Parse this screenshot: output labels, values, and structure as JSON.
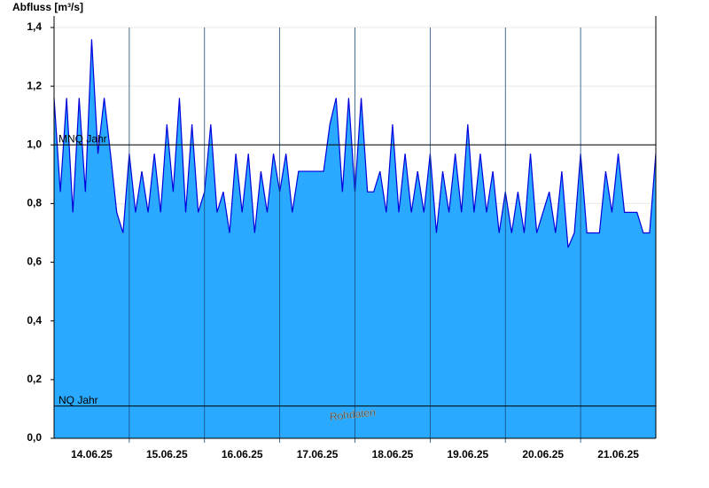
{
  "chart_data": {
    "type": "area",
    "y_label": "Abfluss [m³/s]",
    "x": [
      0,
      2,
      4,
      6,
      8,
      10,
      12,
      14,
      16,
      18,
      20,
      22,
      24,
      26,
      28,
      30,
      32,
      34,
      36,
      38,
      40,
      42,
      44,
      46,
      48,
      50,
      52,
      54,
      56,
      58,
      60,
      62,
      64,
      66,
      68,
      70,
      72,
      74,
      76,
      78,
      80,
      82,
      84,
      86,
      88,
      90,
      92,
      94,
      96,
      98,
      100,
      102,
      104,
      106,
      108,
      110,
      112,
      114,
      116,
      118,
      120,
      122,
      124,
      126,
      128,
      130,
      132,
      134,
      136,
      138,
      140,
      142,
      144,
      146,
      148,
      150,
      152,
      154,
      156,
      158,
      160,
      162,
      164,
      166,
      168,
      170,
      172,
      174,
      176,
      178,
      180,
      182,
      184,
      186,
      188,
      190,
      192
    ],
    "series": [
      {
        "name": "Rohdaten",
        "color": "#29a9ff",
        "line_color": "#0000dd",
        "values": [
          1.16,
          0.84,
          1.16,
          0.77,
          1.16,
          0.84,
          1.36,
          0.97,
          1.16,
          0.97,
          0.77,
          0.7,
          0.97,
          0.77,
          0.91,
          0.77,
          0.97,
          0.77,
          1.07,
          0.84,
          1.16,
          0.77,
          1.07,
          0.77,
          0.84,
          1.07,
          0.77,
          0.84,
          0.7,
          0.97,
          0.77,
          0.97,
          0.7,
          0.91,
          0.77,
          0.97,
          0.84,
          0.97,
          0.77,
          0.91,
          0.91,
          0.91,
          0.91,
          0.91,
          1.07,
          1.16,
          0.84,
          1.16,
          0.84,
          1.16,
          0.84,
          0.84,
          0.91,
          0.77,
          1.07,
          0.77,
          0.97,
          0.77,
          0.91,
          0.77,
          0.97,
          0.7,
          0.91,
          0.77,
          0.97,
          0.77,
          1.07,
          0.77,
          0.97,
          0.77,
          0.91,
          0.7,
          0.84,
          0.7,
          0.84,
          0.7,
          0.97,
          0.7,
          0.77,
          0.84,
          0.7,
          0.91,
          0.65,
          0.7,
          0.97,
          0.7,
          0.7,
          0.7,
          0.91,
          0.77,
          0.97,
          0.77,
          0.77,
          0.77,
          0.7,
          0.7,
          0.97
        ]
      }
    ],
    "xlim": [
      0,
      192
    ],
    "xticks": [
      {
        "value": 12,
        "label": "14.06.25"
      },
      {
        "value": 36,
        "label": "15.06.25"
      },
      {
        "value": 60,
        "label": "16.06.25"
      },
      {
        "value": 84,
        "label": "17.06.25"
      },
      {
        "value": 108,
        "label": "18.06.25"
      },
      {
        "value": 132,
        "label": "19.06.25"
      },
      {
        "value": 156,
        "label": "20.06.25"
      },
      {
        "value": 180,
        "label": "21.06.25"
      }
    ],
    "xgrid": [
      24,
      48,
      72,
      96,
      120,
      144,
      168
    ],
    "ylim": [
      0,
      1.4
    ],
    "yticks": [
      {
        "value": 0,
        "label": "0,0"
      },
      {
        "value": 0.2,
        "label": "0,2"
      },
      {
        "value": 0.4,
        "label": "0,4"
      },
      {
        "value": 0.6,
        "label": "0,6"
      },
      {
        "value": 0.8,
        "label": "0,8"
      },
      {
        "value": 1.0,
        "label": "1,0"
      },
      {
        "value": 1.2,
        "label": "1,2"
      },
      {
        "value": 1.4,
        "label": "1,4"
      }
    ],
    "grid": true,
    "reference_lines": [
      {
        "label": "MNQ Jahr",
        "value": 1.0
      },
      {
        "label": "NQ Jahr",
        "value": 0.11
      }
    ],
    "annotation": "Rohdaten"
  }
}
